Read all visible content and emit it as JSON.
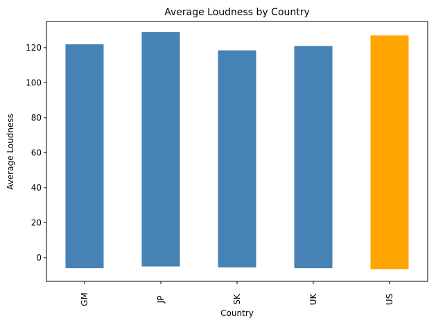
{
  "chart_data": {
    "type": "bar",
    "title": "Average Loudness by Country",
    "xlabel": "Country",
    "ylabel": "Average Loudness",
    "categories": [
      "GM",
      "JP",
      "SK",
      "UK",
      "US"
    ],
    "bars": [
      {
        "low": -6.0,
        "high": 122.0
      },
      {
        "low": -5.0,
        "high": 129.0
      },
      {
        "low": -5.5,
        "high": 118.5
      },
      {
        "low": -6.0,
        "high": 121.0
      },
      {
        "low": -6.5,
        "high": 127.0
      }
    ],
    "colors": [
      "#4682b4",
      "#4682b4",
      "#4682b4",
      "#4682b4",
      "#ffa500"
    ],
    "ylim": [
      -13.5,
      135
    ],
    "yticks": [
      0,
      20,
      40,
      60,
      80,
      100,
      120
    ],
    "grid": false,
    "legend": "none"
  }
}
